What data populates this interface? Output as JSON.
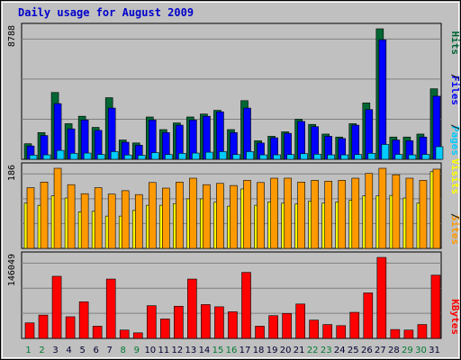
{
  "chart_data": {
    "type": "bar",
    "title": "Daily usage for August 2009",
    "categories": [
      "1",
      "2",
      "3",
      "4",
      "5",
      "6",
      "7",
      "8",
      "9",
      "10",
      "11",
      "12",
      "13",
      "14",
      "15",
      "16",
      "17",
      "18",
      "19",
      "20",
      "21",
      "22",
      "23",
      "24",
      "25",
      "26",
      "27",
      "28",
      "29",
      "30",
      "31"
    ],
    "weekend_days": [
      "1",
      "2",
      "8",
      "9",
      "15",
      "16",
      "22",
      "23",
      "29",
      "30"
    ],
    "panels": [
      {
        "name": "hits-files-pages",
        "max_label": "8788",
        "ymax": 8788,
        "legend": [
          "Pages",
          "Files",
          "Hits"
        ],
        "series": [
          {
            "name": "Hits",
            "color": "#006633",
            "values": [
              1050,
              1800,
              4500,
              2400,
              2900,
              2150,
              4150,
              1300,
              1100,
              2850,
              2000,
              2450,
              2850,
              3050,
              3300,
              2000,
              3950,
              1250,
              1550,
              1850,
              2700,
              2350,
              1700,
              1500,
              2400,
              3800,
              8788,
              1500,
              1500,
              1700,
              4750
            ]
          },
          {
            "name": "Files",
            "color": "#0000ff",
            "values": [
              900,
              1600,
              3750,
              2050,
              2650,
              1950,
              3450,
              1150,
              950,
              2650,
              1800,
              2300,
              2650,
              2900,
              3200,
              1800,
              3450,
              1100,
              1450,
              1750,
              2550,
              2200,
              1550,
              1400,
              2300,
              3350,
              8050,
              1300,
              1250,
              1500,
              4250
            ]
          },
          {
            "name": "Pages",
            "color": "#00ccff",
            "values": [
              280,
              300,
              600,
              400,
              420,
              330,
              520,
              290,
              270,
              450,
              320,
              400,
              420,
              480,
              520,
              320,
              520,
              300,
              300,
              320,
              380,
              340,
              300,
              300,
              320,
              400,
              1000,
              330,
              300,
              330,
              850
            ]
          }
        ]
      },
      {
        "name": "sites-visits",
        "max_label": "186",
        "ymax": 186,
        "legend": [
          "Sites",
          "Visits"
        ],
        "series": [
          {
            "name": "Visits",
            "color": "#ffff00",
            "values": [
              105,
              100,
              122,
              117,
              85,
              86,
              75,
              75,
              88,
              100,
              100,
              104,
              115,
              115,
              107,
              98,
              138,
              100,
              108,
              105,
              103,
              110,
              105,
              108,
              112,
              122,
              122,
              123,
              117,
              105,
              178
            ]
          },
          {
            "name": "Sites",
            "color": "#ff9900",
            "values": [
              141,
              154,
              186,
              148,
              127,
              141,
              126,
              134,
              125,
              153,
              140,
              154,
              163,
              148,
              151,
              146,
              158,
              153,
              163,
              163,
              154,
              158,
              156,
              158,
              163,
              174,
              186,
              171,
              163,
              158,
              184
            ]
          }
        ]
      },
      {
        "name": "kbytes",
        "max_label": "146049",
        "ymax": 146049,
        "legend": [
          "KBytes"
        ],
        "series": [
          {
            "name": "KBytes",
            "color": "#ff0000",
            "values": [
              28000,
              42000,
              112000,
              39000,
              66000,
              22000,
              107000,
              15000,
              10000,
              59000,
              35000,
              58000,
              107000,
              61000,
              57000,
              48000,
              119000,
              22000,
              41000,
              45000,
              62000,
              33000,
              25000,
              23000,
              47000,
              82000,
              146049,
              16000,
              15000,
              25000,
              114000
            ]
          }
        ]
      }
    ],
    "grid": true
  }
}
